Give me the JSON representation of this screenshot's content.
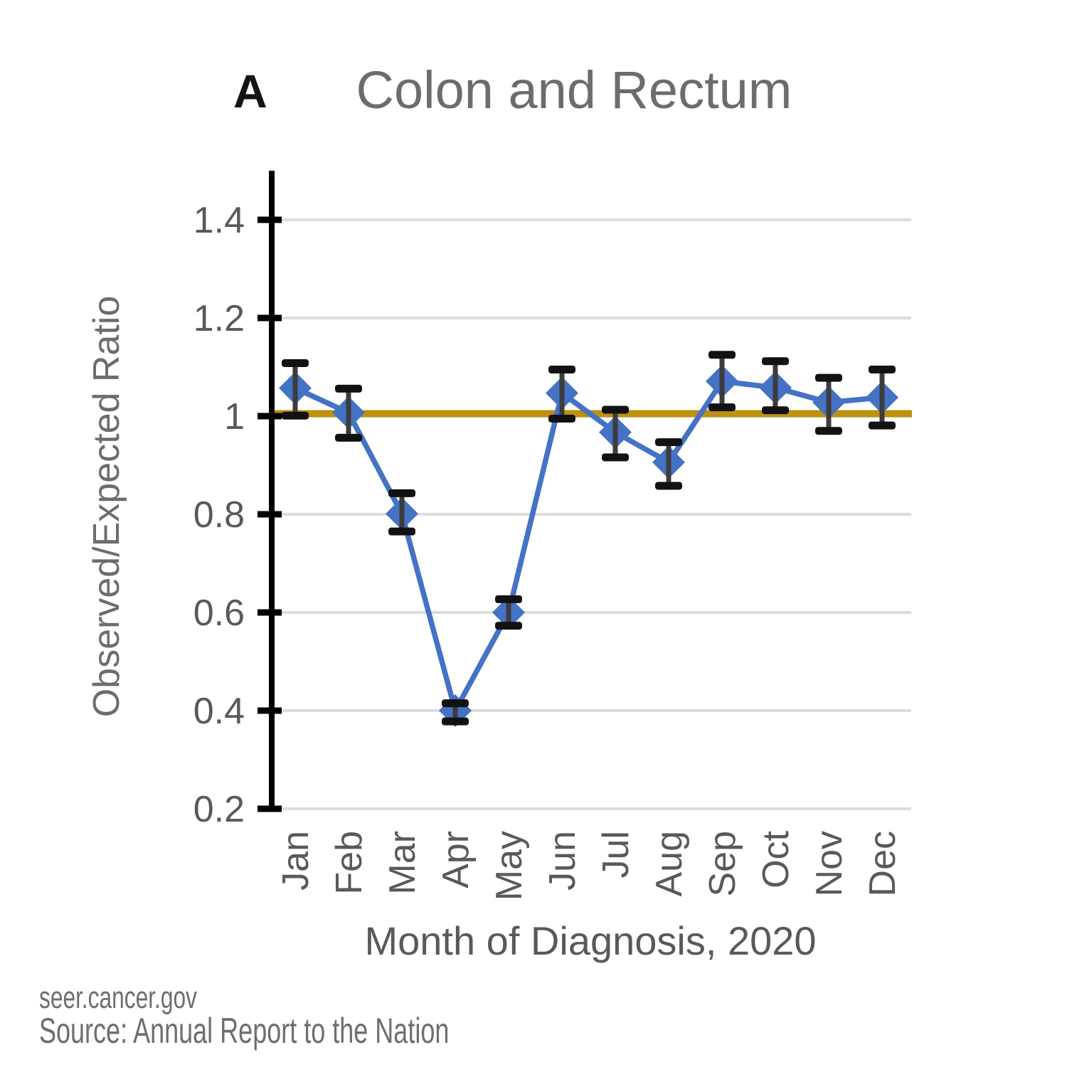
{
  "title": {
    "panel_label": "A",
    "text": "Colon and Rectum"
  },
  "footer": {
    "line1": "seer.cancer.gov",
    "line2": "Source: Annual Report to the Nation"
  },
  "chart_data": {
    "type": "line",
    "panel_label": "A",
    "title": "Colon and Rectum",
    "xlabel": "Month of Diagnosis, 2020",
    "ylabel": "Observed/Expected Ratio",
    "categories": [
      "Jan",
      "Feb",
      "Mar",
      "Apr",
      "May",
      "Jun",
      "Jul",
      "Aug",
      "Sep",
      "Oct",
      "Nov",
      "Dec"
    ],
    "series": [
      {
        "name": "Observed/Expected Ratio",
        "marker": "diamond",
        "values": [
          1.057,
          1.007,
          0.801,
          0.4,
          0.6,
          1.047,
          0.967,
          0.906,
          1.071,
          1.058,
          1.028,
          1.038
        ],
        "ci_low": [
          1.001,
          0.956,
          0.765,
          0.378,
          0.573,
          0.995,
          0.916,
          0.858,
          1.018,
          1.012,
          0.97,
          0.981
        ],
        "ci_high": [
          1.108,
          1.056,
          0.843,
          0.415,
          0.627,
          1.095,
          1.013,
          0.947,
          1.125,
          1.112,
          1.078,
          1.095
        ]
      }
    ],
    "reference_line": {
      "value": 1.0
    },
    "ylim": [
      0.2,
      1.5
    ],
    "yticks": [
      1.4,
      1.2,
      1.0,
      0.8,
      0.6,
      0.4,
      0.2
    ],
    "ytick_labels": [
      "1.4",
      "1.2",
      "1",
      "0.8",
      "0.6",
      "0.4",
      "0.2"
    ],
    "grid": true,
    "legend": "none",
    "colors": {
      "series": "#4472C4",
      "reference": "#BD9210",
      "error_cap": "#121212",
      "error_stem": "#3c3c3c",
      "grid": "#DCDCDC",
      "axis": "#000000",
      "tick_text": "#595959",
      "title_text": "#6c6c6c"
    }
  }
}
